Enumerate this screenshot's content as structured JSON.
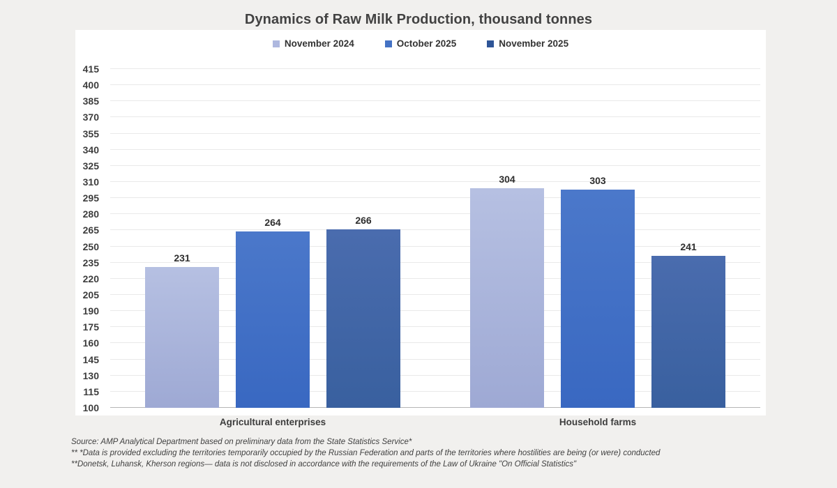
{
  "chart_data": {
    "type": "bar",
    "title": "Dynamics of Raw Milk Production, thousand tonnes",
    "categories": [
      "Agricultural enterprises",
      "Household farms"
    ],
    "series": [
      {
        "name": "November 2024",
        "values": [
          231,
          304
        ],
        "swatch": "#aeb8df",
        "gradient_top": "#b6c0e2",
        "gradient_bottom": "#9ea9d4"
      },
      {
        "name": "October 2025",
        "values": [
          264,
          303
        ],
        "swatch": "#4472c4",
        "gradient_top": "#4b78ca",
        "gradient_bottom": "#3968c1"
      },
      {
        "name": "November 2025",
        "values": [
          266,
          241
        ],
        "swatch": "#2e5597",
        "gradient_top": "#4a6cae",
        "gradient_bottom": "#39609f"
      }
    ],
    "ylim": [
      100,
      415
    ],
    "ytick_step": 15,
    "grid": true,
    "legend_position": "top",
    "data_labels": true,
    "colors": {
      "grid_line": "#e9e9e9",
      "axis_line": "#b5b5b5",
      "card_background": "#ffffff",
      "page_background": "#f1f0ee"
    }
  },
  "footnotes": [
    "Source: AMP Analytical Department based on preliminary data from the State Statistics Service*",
    "** *Data is provided excluding the territories temporarily occupied by the Russian Federation and parts of the territories where hostilities are being (or were) conducted",
    "**Donetsk, Luhansk, Kherson  regions— data is not disclosed in accordance with the requirements of the Law of Ukraine \"On Official Statistics\""
  ]
}
